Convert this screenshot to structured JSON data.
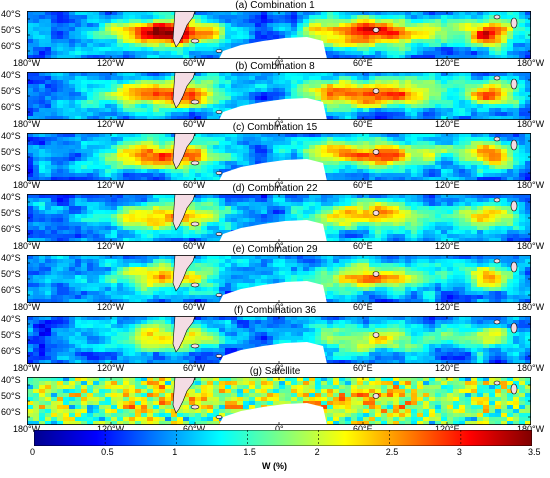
{
  "panels": [
    {
      "id": "a",
      "title": "(a) Combination 1",
      "intensity": 1.0
    },
    {
      "id": "b",
      "title": "(b) Combination 8",
      "intensity": 0.92
    },
    {
      "id": "c",
      "title": "(c) Combination 15",
      "intensity": 0.78
    },
    {
      "id": "d",
      "title": "(d) Combination 22",
      "intensity": 0.72
    },
    {
      "id": "e",
      "title": "(e) Combination 29",
      "intensity": 0.66
    },
    {
      "id": "f",
      "title": "(f) Combination 36",
      "intensity": 0.58
    },
    {
      "id": "g",
      "title": "(g) Satellite",
      "intensity": 0.35
    }
  ],
  "lat_labels": [
    "40°S",
    "50°S",
    "60°S"
  ],
  "lon_labels": [
    "180°W",
    "120°W",
    "60°W",
    "0°",
    "60°E",
    "120°E",
    "180°W"
  ],
  "colorbar": {
    "label": "W (%)",
    "ticks": [
      "0",
      "0.5",
      "1",
      "1.5",
      "2",
      "2.5",
      "3",
      "3.5"
    ],
    "range": [
      0,
      3.5
    ],
    "colors": [
      "#00008f",
      "#0000ff",
      "#0080ff",
      "#00ffff",
      "#80ff80",
      "#ffff00",
      "#ff8000",
      "#ff0000",
      "#800000"
    ]
  }
}
